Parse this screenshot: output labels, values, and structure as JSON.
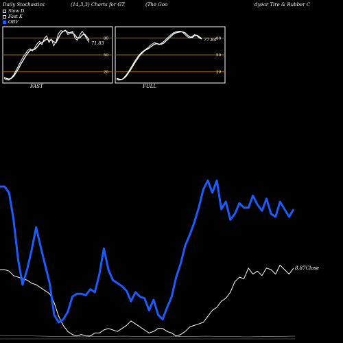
{
  "header": {
    "left": "Daily Stochastics",
    "middle": "(14,3,3) Charts for GT",
    "right_a": "(The    Goo",
    "right_b": "dyear Tire  & Rubber C"
  },
  "legend": [
    {
      "label": "Slow  D",
      "color": "#ffffff",
      "fill": "#000000"
    },
    {
      "label": "Fast K",
      "color": "#ffffff",
      "fill": "#000000"
    },
    {
      "label": "OBV",
      "color": "#1a5cff",
      "fill": "#1a5cff"
    }
  ],
  "colors": {
    "background": "#000000",
    "panel_line": "#ffffff",
    "level_line": "#a06a00",
    "obv": "#1a5cff",
    "close": "#ffffff"
  },
  "chart_data": [
    {
      "type": "line",
      "title": "FAST",
      "ylim": [
        0,
        100
      ],
      "y_ticks": [
        20,
        50,
        80
      ],
      "levels": [
        20,
        50,
        80
      ],
      "last_value_label": "71.83",
      "series": [
        {
          "name": "Fast K",
          "values": [
            8,
            6,
            5,
            9,
            14,
            22,
            30,
            38,
            46,
            52,
            58,
            61,
            57,
            63,
            70,
            74,
            68,
            79,
            84,
            72,
            78,
            66,
            74,
            88,
            93,
            92,
            94,
            86,
            90,
            92,
            80,
            76,
            85,
            92,
            86,
            78,
            72
          ]
        },
        {
          "name": "Slow  D",
          "values": [
            10,
            8,
            7,
            8,
            12,
            18,
            25,
            33,
            40,
            47,
            53,
            58,
            59,
            60,
            64,
            70,
            72,
            75,
            78,
            76,
            77,
            73,
            72,
            80,
            88,
            92,
            93,
            90,
            89,
            89,
            85,
            80,
            80,
            85,
            87,
            82,
            76
          ]
        }
      ]
    },
    {
      "type": "line",
      "title": "FULL",
      "ylim": [
        0,
        100
      ],
      "y_ticks": [
        20,
        50,
        80
      ],
      "levels": [
        20,
        50,
        80
      ],
      "last_value_label": "77.84",
      "series": [
        {
          "name": "Fast K",
          "values": [
            6,
            5,
            6,
            9,
            14,
            20,
            27,
            34,
            41,
            47,
            52,
            56,
            59,
            62,
            66,
            69,
            72,
            70,
            68,
            71,
            74,
            78,
            82,
            86,
            89,
            91,
            92,
            92,
            90,
            86,
            82,
            80,
            83,
            86,
            84,
            80,
            78
          ]
        },
        {
          "name": "Slow  D",
          "values": [
            8,
            7,
            6,
            8,
            12,
            18,
            24,
            31,
            38,
            44,
            50,
            54,
            58,
            60,
            63,
            66,
            69,
            70,
            69,
            69,
            71,
            75,
            79,
            83,
            87,
            89,
            90,
            91,
            91,
            89,
            85,
            82,
            81,
            84,
            85,
            82,
            79
          ]
        }
      ]
    },
    {
      "type": "line",
      "title": "",
      "last_value_label": "8.87Close",
      "series": [
        {
          "name": "OBV",
          "values": [
            100,
            100,
            96,
            78,
            52,
            35,
            45,
            58,
            73,
            60,
            48,
            36,
            15,
            10,
            12,
            17,
            27,
            29,
            29,
            28,
            32,
            30,
            42,
            59,
            45,
            38,
            36,
            34,
            31,
            24,
            30,
            27,
            26,
            18,
            25,
            15,
            12,
            20,
            27,
            40,
            49,
            61,
            68,
            76,
            86,
            98,
            104,
            96,
            104,
            85,
            90,
            78,
            82,
            89,
            86,
            86,
            94,
            88,
            84,
            92,
            82,
            80,
            90,
            85,
            80,
            85
          ]
        },
        {
          "name": "Close",
          "values": [
            45,
            45,
            44,
            41,
            40,
            39,
            38,
            36,
            35,
            33,
            31,
            29,
            23,
            14,
            8,
            4,
            2,
            1,
            2,
            1,
            1,
            3,
            3,
            5,
            6,
            5,
            4,
            6,
            8,
            11,
            9,
            7,
            5,
            3,
            4,
            6,
            6,
            4,
            3,
            1,
            2,
            4,
            7,
            8,
            9,
            10,
            14,
            18,
            20,
            24,
            26,
            30,
            37,
            40,
            39,
            46,
            42,
            44,
            41,
            46,
            45,
            42,
            48,
            45,
            42,
            46
          ]
        }
      ]
    }
  ]
}
